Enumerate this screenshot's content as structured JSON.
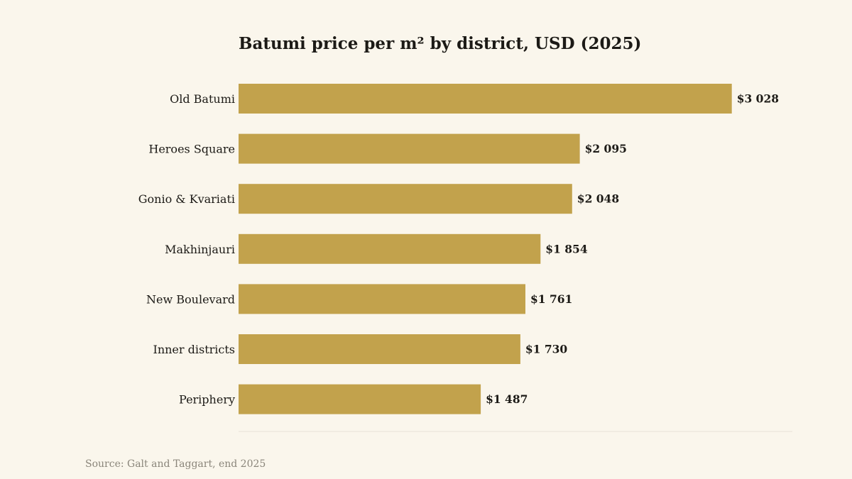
{
  "chart_data": {
    "type": "bar",
    "orientation": "horizontal",
    "title": "Batumi price per m² by district, USD (2025)",
    "categories": [
      "Old Batumi",
      "Heroes Square",
      "Gonio & Kvariati",
      "Makhinjauri",
      "New Boulevard",
      "Inner districts",
      "Periphery"
    ],
    "values": [
      3028,
      2095,
      2048,
      1854,
      1761,
      1730,
      1487
    ],
    "value_labels": [
      "$3 028",
      "$2 095",
      "$2 048",
      "$1 854",
      "$1 761",
      "$1 730",
      "$1 487"
    ],
    "xlim": [
      0,
      3400
    ],
    "grid": false,
    "legend": "none",
    "bar_color": "#c2a24c"
  },
  "source": "Source: Galt and Taggart, end 2025",
  "colors": {
    "background": "#faf6ec",
    "bar": "#c2a24c",
    "text": "#1c1a16",
    "muted": "#8a857a",
    "axis_line": "#e8e3d8"
  }
}
